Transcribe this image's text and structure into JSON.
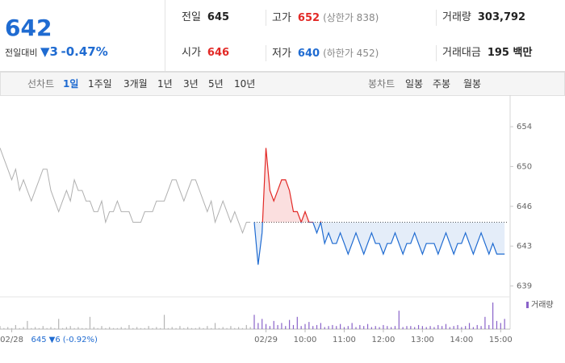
{
  "quote": {
    "price": "642",
    "change_label": "전일대비",
    "change": "▼3",
    "change_rate": "-0.47%"
  },
  "info": [
    [
      {
        "label": "전일",
        "value": "645",
        "color": "#222222"
      },
      {
        "label": "고가",
        "value": "652",
        "note": "(상한가 838)",
        "color": "#e22926"
      },
      {
        "label": "거래량",
        "value": "303,792",
        "color": "#222222"
      }
    ],
    [
      {
        "label": "시가",
        "value": "646",
        "color": "#e22926"
      },
      {
        "label": "저가",
        "value": "640",
        "note": "(하한가 452)",
        "color": "#1f6bd1"
      },
      {
        "label": "거래대금",
        "value": "195 백만",
        "color": "#222222"
      }
    ]
  ],
  "tabs": {
    "line_label": "선차트",
    "line_items": [
      "1일",
      "1주일",
      "3개월",
      "1년",
      "3년",
      "5년",
      "10년"
    ],
    "line_active": 0,
    "candle_label": "봉차트",
    "candle_items": [
      "일봉",
      "주봉",
      "월봉"
    ]
  },
  "chart_data": {
    "type": "line",
    "ylim": [
      638.2,
      655.3
    ],
    "yticks": [
      {
        "value": 654,
        "label": "654"
      },
      {
        "value": 650.25,
        "label": "650"
      },
      {
        "value": 646.5,
        "label": "646"
      },
      {
        "value": 642.75,
        "label": "643"
      },
      {
        "value": 639,
        "label": "639"
      }
    ],
    "xlim": [
      0,
      130
    ],
    "xticks": [
      {
        "value": 3,
        "label": "02/28"
      },
      {
        "value": 68,
        "label": "02/29"
      },
      {
        "value": 78,
        "label": "10:00"
      },
      {
        "value": 88,
        "label": "11:00"
      },
      {
        "value": 98,
        "label": "12:00"
      },
      {
        "value": 108,
        "label": "13:00"
      },
      {
        "value": 118,
        "label": "14:00"
      },
      {
        "value": 128,
        "label": "15:00"
      }
    ],
    "prev_day": {
      "close": 645,
      "change": "▼6",
      "rate": "(-0.92%)",
      "color": "#1f6bd1"
    },
    "series": [
      {
        "color": "#b0b0b0",
        "values": [
          652,
          651,
          650,
          649,
          650,
          648,
          649,
          648,
          647,
          648,
          649,
          650,
          650,
          648,
          647,
          646,
          647,
          648,
          647,
          649,
          648,
          648,
          647,
          647,
          646,
          646,
          647,
          645,
          646,
          646,
          647,
          646,
          646,
          646,
          645,
          645,
          645,
          646,
          646,
          646,
          647,
          647,
          647,
          648,
          649,
          649,
          648,
          647,
          648,
          649,
          649,
          648,
          647,
          646,
          647,
          645,
          646,
          647,
          646,
          645,
          646,
          645,
          644,
          645,
          645
        ]
      },
      {
        "color_up": "#e22926",
        "color_down": "#1f6bd1",
        "values": [
          645,
          641,
          644,
          652,
          648,
          647,
          648,
          649,
          649,
          648,
          646,
          646,
          645,
          646,
          645,
          645,
          644,
          645,
          643,
          644,
          643,
          643,
          644,
          643,
          642,
          643,
          644,
          643,
          642,
          643,
          644,
          643,
          643,
          642,
          643,
          643,
          644,
          643,
          642,
          643,
          643,
          644,
          643,
          642,
          643,
          643,
          643,
          642,
          643,
          644,
          643,
          642,
          643,
          643,
          644,
          643,
          642,
          643,
          644,
          643,
          642,
          643,
          642,
          642,
          642
        ]
      }
    ],
    "volume": {
      "name": "거래량",
      "color": "#8a63c9",
      "color_prev": "#b5b5b5",
      "ylim": [
        0,
        30
      ],
      "values": [
        3,
        1,
        2,
        1,
        4,
        1,
        2,
        8,
        1,
        2,
        1,
        3,
        1,
        2,
        1,
        10,
        1,
        2,
        3,
        1,
        2,
        1,
        1,
        12,
        2,
        1,
        3,
        1,
        2,
        1,
        1,
        2,
        1,
        4,
        1,
        2,
        1,
        1,
        3,
        1,
        2,
        1,
        14,
        1,
        2,
        1,
        3,
        1,
        2,
        1,
        1,
        2,
        1,
        3,
        1,
        6,
        1,
        2,
        1,
        3,
        1,
        2,
        1,
        4,
        2,
        14,
        6,
        10,
        5,
        3,
        8,
        4,
        6,
        3,
        9,
        4,
        12,
        3,
        5,
        7,
        3,
        4,
        6,
        2,
        3,
        4,
        3,
        5,
        2,
        3,
        6,
        2,
        4,
        3,
        5,
        2,
        3,
        2,
        4,
        3,
        2,
        3,
        18,
        2,
        3,
        3,
        2,
        4,
        3,
        2,
        3,
        2,
        4,
        3,
        5,
        2,
        3,
        4,
        2,
        3,
        6,
        2,
        4,
        3,
        12,
        4,
        26,
        8,
        6,
        10
      ]
    }
  }
}
